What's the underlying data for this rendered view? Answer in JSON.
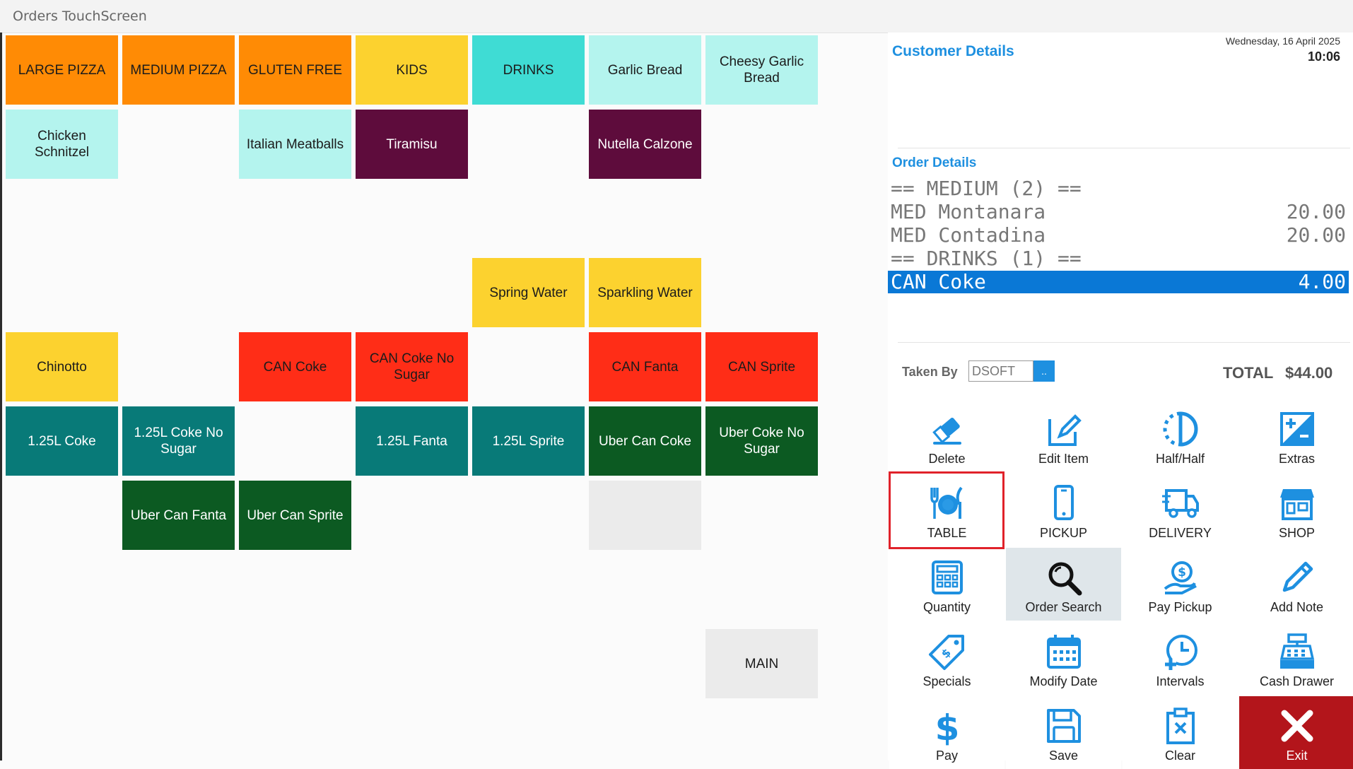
{
  "window": {
    "title": "Orders TouchScreen"
  },
  "menu": {
    "categories": [
      "LARGE PIZZA",
      "MEDIUM PIZZA",
      "GLUTEN FREE",
      "KIDS",
      "DRINKS",
      "Garlic Bread",
      "Cheesy Garlic Bread"
    ],
    "row2": [
      "Chicken Schnitzel",
      "Italian Meatballs",
      "Tiramisu",
      "Nutella Calzone"
    ],
    "water": [
      "Spring Water",
      "Sparkling Water"
    ],
    "cans": [
      "Chinotto",
      "CAN Coke",
      "CAN Coke No Sugar",
      "CAN Fanta",
      "CAN Sprite"
    ],
    "bottles": [
      "1.25L Coke",
      "1.25L Coke No Sugar",
      "1.25L Fanta",
      "1.25L Sprite",
      "Uber Can Coke",
      "Uber Coke No Sugar"
    ],
    "uber": [
      "Uber Can Fanta",
      "Uber Can Sprite"
    ],
    "main": "MAIN"
  },
  "customer": {
    "title": "Customer Details"
  },
  "datetime": {
    "date": "Wednesday, 16 April 2025",
    "time": "10:06"
  },
  "order": {
    "title": "Order Details",
    "lines": [
      {
        "name": "== MEDIUM (2) ==",
        "price": ""
      },
      {
        "name": "MED Montanara",
        "price": "20.00"
      },
      {
        "name": "MED Contadina",
        "price": "20.00"
      },
      {
        "name": "== DRINKS (1) ==",
        "price": ""
      },
      {
        "name": "CAN Coke",
        "price": "4.00",
        "selected": true
      }
    ]
  },
  "taken_by": {
    "label": "Taken By",
    "value": "DSOFT",
    "button": ".."
  },
  "total": {
    "label": "TOTAL",
    "value": "$44.00"
  },
  "functions": {
    "delete": "Delete",
    "edit_item": "Edit Item",
    "half_half": "Half/Half",
    "extras": "Extras",
    "table": "TABLE",
    "pickup": "PICKUP",
    "delivery": "DELIVERY",
    "shop": "SHOP",
    "quantity": "Quantity",
    "order_search": "Order Search",
    "pay_pickup": "Pay Pickup",
    "add_note": "Add Note",
    "specials": "Specials",
    "modify_date": "Modify Date",
    "intervals": "Intervals",
    "cash_drawer": "Cash Drawer",
    "pay": "Pay",
    "save": "Save",
    "clear": "Clear",
    "exit": "Exit"
  },
  "colors": {
    "accent": "#1e90e0",
    "selected_line": "#0a78d6",
    "highlight_border": "#e0222a",
    "exit": "#b3151b",
    "orange": "#ff8b05",
    "yellow": "#fcd22f",
    "teal": "#3fdcd4",
    "mint": "#b4f4ee",
    "plum": "#5e0c3c",
    "red": "#ff2d17",
    "darkteal": "#087a78",
    "green": "#0c5a22"
  },
  "icons": {
    "delete": "eraser-icon",
    "edit_item": "edit-icon",
    "half_half": "half-circle-icon",
    "extras": "plus-minus-icon",
    "table": "cutlery-plate-icon",
    "pickup": "phone-icon",
    "delivery": "truck-icon",
    "shop": "storefront-icon",
    "quantity": "calculator-icon",
    "order_search": "magnifier-icon",
    "pay_pickup": "money-hand-icon",
    "add_note": "pencil-icon",
    "specials": "tag-icon",
    "modify_date": "calendar-icon",
    "intervals": "clock-plus-icon",
    "cash_drawer": "cash-register-icon",
    "pay": "dollar-icon",
    "save": "floppy-icon",
    "clear": "clipboard-x-icon",
    "exit": "x-icon"
  }
}
